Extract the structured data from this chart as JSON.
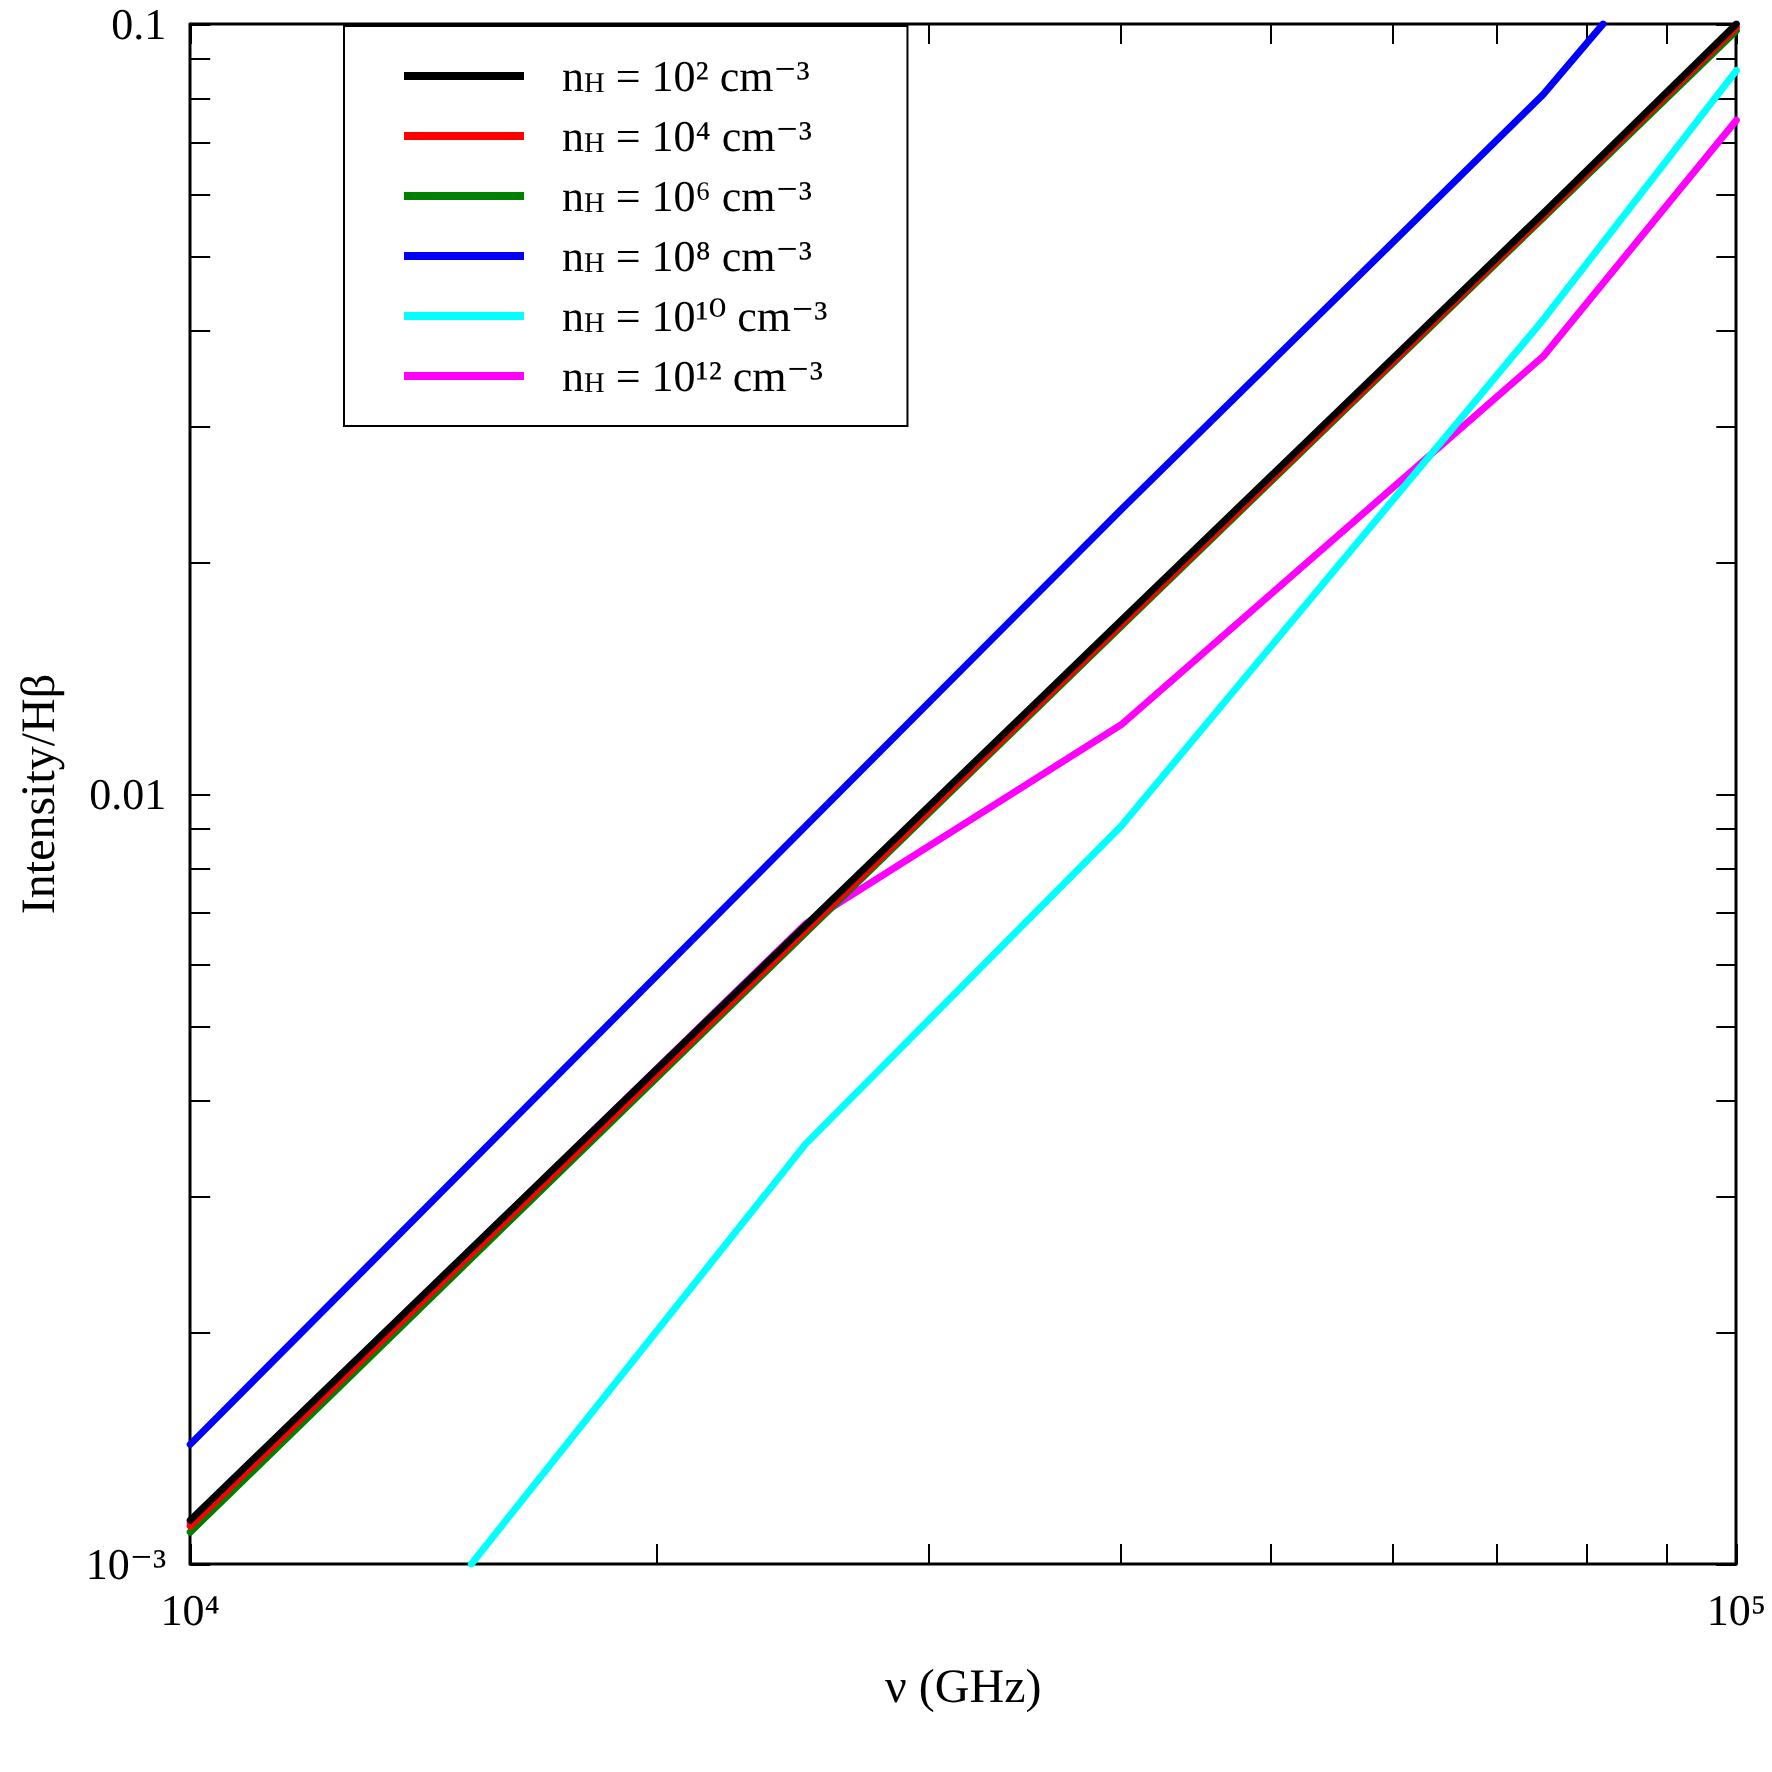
{
  "chart_data": {
    "type": "line",
    "xlabel": "ν (GHz)",
    "ylabel": "Intensity/Hβ",
    "log": "xy",
    "grid": false,
    "legend": "top left",
    "xlim": [
      10000,
      100000
    ],
    "ylim": [
      0.001,
      0.1
    ],
    "xticks": [
      {
        "value": 10000,
        "label": "10⁴"
      },
      {
        "value": 20000,
        "label": null
      },
      {
        "value": 30000,
        "label": null
      },
      {
        "value": 40000,
        "label": null
      },
      {
        "value": 50000,
        "label": null
      },
      {
        "value": 60000,
        "label": null
      },
      {
        "value": 70000,
        "label": null
      },
      {
        "value": 80000,
        "label": null
      },
      {
        "value": 90000,
        "label": null
      },
      {
        "value": 100000,
        "label": "10⁵"
      }
    ],
    "yticks": [
      {
        "value": 0.001,
        "label": "10⁻³"
      },
      {
        "value": 0.002,
        "label": null
      },
      {
        "value": 0.003,
        "label": null
      },
      {
        "value": 0.004,
        "label": null
      },
      {
        "value": 0.005,
        "label": null
      },
      {
        "value": 0.006,
        "label": null
      },
      {
        "value": 0.007,
        "label": null
      },
      {
        "value": 0.008,
        "label": null
      },
      {
        "value": 0.009,
        "label": null
      },
      {
        "value": 0.01,
        "label": "0.01"
      },
      {
        "value": 0.02,
        "label": null
      },
      {
        "value": 0.03,
        "label": null
      },
      {
        "value": 0.04,
        "label": null
      },
      {
        "value": 0.05,
        "label": null
      },
      {
        "value": 0.06,
        "label": null
      },
      {
        "value": 0.07,
        "label": null
      },
      {
        "value": 0.08,
        "label": null
      },
      {
        "value": 0.09,
        "label": null
      },
      {
        "value": 0.1,
        "label": "0.1"
      }
    ],
    "series": [
      {
        "name": "n$_{H}$ = 10² cm⁻³",
        "color": "#000000",
        "x": [
          10000,
          25000,
          40000,
          75000,
          100000
        ],
        "values": [
          0.00114,
          0.00675,
          0.0168,
          0.0568,
          0.1
        ]
      },
      {
        "name": "n$_{H}$ = 10⁴ cm⁻³",
        "color": "#ff0000",
        "x": [
          10000,
          25000,
          40000,
          75000,
          100000
        ],
        "values": [
          0.00112,
          0.00665,
          0.0166,
          0.0563,
          0.099
        ]
      },
      {
        "name": "n$_{H}$ = 10⁶ cm⁻³",
        "color": "#008000",
        "x": [
          10000,
          25000,
          40000,
          75000,
          100000
        ],
        "values": [
          0.0011,
          0.0066,
          0.0165,
          0.056,
          0.098
        ]
      },
      {
        "name": "n$_{H}$ = 10⁸ cm⁻³",
        "color": "#0000ff",
        "x": [
          10000,
          25000,
          40000,
          75000,
          82000
        ],
        "values": [
          0.00143,
          0.00908,
          0.0234,
          0.081,
          0.1
        ]
      },
      {
        "name": "n$_{H}$ = 10¹⁰ cm⁻³",
        "color": "#00ffff",
        "x": [
          15200,
          25000,
          40000,
          75000,
          100000
        ],
        "values": [
          0.001,
          0.00351,
          0.00908,
          0.0413,
          0.087
        ]
      },
      {
        "name": "n$_{H}$ = 10¹² cm⁻³",
        "color": "#ff00ff",
        "x": [
          10000,
          25000,
          40000,
          75000,
          100000
        ],
        "values": [
          0.00113,
          0.00678,
          0.0123,
          0.037,
          0.075
        ]
      }
    ]
  }
}
